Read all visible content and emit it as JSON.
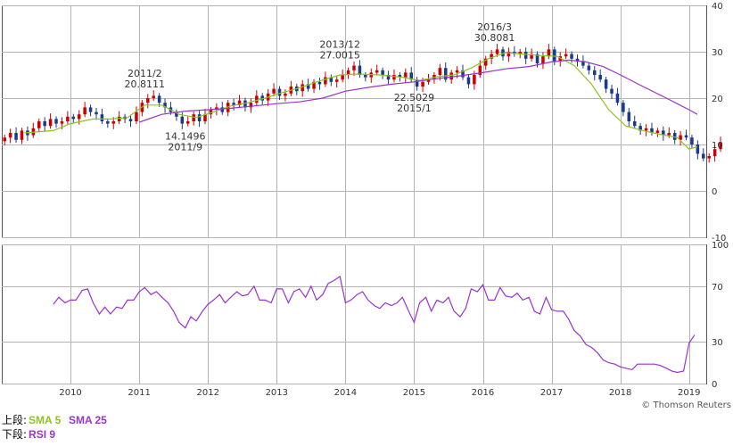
{
  "chart_data": {
    "type": "candlestick",
    "upper_panel": {
      "yticks": [
        "40",
        "30",
        "20",
        "10",
        "0",
        "-10"
      ],
      "ylim": [
        -10,
        40
      ],
      "annotations": [
        {
          "date": "2011/2",
          "value": "20.8111",
          "pos": "above",
          "x": 2011.08,
          "y": 20.81
        },
        {
          "date": "2011/9",
          "value": "14.1496",
          "pos": "below",
          "x": 2011.67,
          "y": 14.15
        },
        {
          "date": "2013/12",
          "value": "27.0015",
          "pos": "above",
          "x": 2013.92,
          "y": 27.0
        },
        {
          "date": "2015/1",
          "value": "22.5029",
          "pos": "below",
          "x": 2015.0,
          "y": 22.5
        },
        {
          "date": "2016/3",
          "value": "30.8081",
          "pos": "above",
          "x": 2016.17,
          "y": 30.81
        }
      ],
      "candles": {
        "start": 2009.0,
        "step": 0.0833333,
        "closes": [
          11.5,
          12.5,
          11.0,
          13.0,
          12.0,
          13.5,
          15.0,
          14.0,
          15.5,
          14.5,
          15.0,
          16.0,
          15.5,
          16.5,
          18.0,
          17.0,
          16.5,
          15.0,
          14.5,
          15.0,
          16.0,
          15.5,
          15.0,
          17.0,
          19.0,
          20.0,
          20.5,
          19.0,
          18.0,
          17.0,
          16.0,
          14.5,
          15.0,
          16.5,
          15.0,
          16.5,
          17.5,
          18.0,
          17.0,
          19.0,
          18.5,
          19.5,
          18.0,
          19.0,
          20.5,
          19.5,
          21.0,
          22.0,
          20.5,
          21.0,
          22.5,
          21.5,
          23.0,
          22.0,
          23.5,
          23.0,
          24.5,
          23.5,
          24.0,
          25.0,
          26.0,
          27.0,
          25.0,
          24.5,
          25.5,
          26.0,
          25.0,
          24.0,
          25.0,
          24.5,
          25.5,
          24.0,
          22.5,
          23.5,
          24.0,
          25.0,
          26.5,
          24.0,
          25.5,
          26.0,
          24.5,
          23.0,
          25.0,
          27.0,
          28.5,
          29.5,
          30.5,
          29.0,
          30.0,
          29.5,
          30.0,
          28.5,
          29.5,
          27.5,
          29.0,
          30.5,
          28.0,
          29.0,
          29.5,
          28.5,
          28.0,
          27.0,
          26.0,
          25.0,
          24.0,
          22.0,
          21.0,
          19.0,
          17.0,
          15.0,
          14.0,
          13.0,
          13.5,
          12.5,
          13.0,
          12.0,
          12.5,
          11.0,
          12.0,
          11.5,
          10.0,
          8.0,
          7.0,
          7.5,
          9.0,
          10.5
        ]
      },
      "sma5": [
        [
          2009.33,
          12.5
        ],
        [
          2009.75,
          13.0
        ],
        [
          2010.0,
          14.5
        ],
        [
          2010.33,
          15.5
        ],
        [
          2010.58,
          15.5
        ],
        [
          2010.83,
          15.8
        ],
        [
          2011.08,
          18.5
        ],
        [
          2011.33,
          18.5
        ],
        [
          2011.58,
          16.5
        ],
        [
          2011.83,
          15.8
        ],
        [
          2012.08,
          17.0
        ],
        [
          2012.33,
          18.3
        ],
        [
          2012.58,
          19.0
        ],
        [
          2012.83,
          20.0
        ],
        [
          2013.08,
          21.2
        ],
        [
          2013.33,
          22.2
        ],
        [
          2013.58,
          23.5
        ],
        [
          2013.92,
          25.0
        ],
        [
          2014.17,
          25.2
        ],
        [
          2014.5,
          25.0
        ],
        [
          2014.83,
          24.5
        ],
        [
          2015.08,
          23.8
        ],
        [
          2015.33,
          24.6
        ],
        [
          2015.58,
          25.0
        ],
        [
          2015.83,
          26.5
        ],
        [
          2016.08,
          28.5
        ],
        [
          2016.33,
          29.8
        ],
        [
          2016.58,
          29.5
        ],
        [
          2016.83,
          29.2
        ],
        [
          2017.08,
          29.0
        ],
        [
          2017.33,
          27.0
        ],
        [
          2017.58,
          23.0
        ],
        [
          2017.83,
          17.5
        ],
        [
          2018.08,
          14.0
        ],
        [
          2018.33,
          13.0
        ],
        [
          2018.58,
          12.2
        ],
        [
          2018.83,
          11.5
        ],
        [
          2019.0,
          9.0
        ],
        [
          2019.12,
          9.5
        ]
      ],
      "sma25": [
        [
          2011.0,
          14.8
        ],
        [
          2011.33,
          16.5
        ],
        [
          2011.67,
          17.2
        ],
        [
          2012.0,
          17.5
        ],
        [
          2012.33,
          17.8
        ],
        [
          2012.67,
          18.3
        ],
        [
          2013.0,
          18.8
        ],
        [
          2013.33,
          19.2
        ],
        [
          2013.67,
          20.0
        ],
        [
          2014.0,
          21.5
        ],
        [
          2014.33,
          22.3
        ],
        [
          2014.67,
          23.0
        ],
        [
          2015.0,
          23.5
        ],
        [
          2015.33,
          24.2
        ],
        [
          2015.67,
          24.8
        ],
        [
          2016.0,
          25.5
        ],
        [
          2016.33,
          26.3
        ],
        [
          2016.67,
          26.8
        ],
        [
          2017.0,
          27.8
        ],
        [
          2017.25,
          28.2
        ],
        [
          2017.5,
          27.8
        ],
        [
          2017.75,
          26.8
        ],
        [
          2018.0,
          25.0
        ],
        [
          2018.33,
          22.5
        ],
        [
          2018.67,
          20.0
        ],
        [
          2019.0,
          17.5
        ],
        [
          2019.12,
          16.5
        ]
      ]
    },
    "lower_panel": {
      "yticks": [
        "100",
        "70",
        "30",
        "0"
      ],
      "ylim": [
        0,
        100
      ],
      "rsi": [
        [
          2009.75,
          57
        ],
        [
          2009.83,
          62
        ],
        [
          2009.92,
          58
        ],
        [
          2010.0,
          60
        ],
        [
          2010.08,
          60
        ],
        [
          2010.17,
          67
        ],
        [
          2010.25,
          68
        ],
        [
          2010.33,
          58
        ],
        [
          2010.42,
          50
        ],
        [
          2010.5,
          55
        ],
        [
          2010.58,
          50
        ],
        [
          2010.67,
          55
        ],
        [
          2010.75,
          54
        ],
        [
          2010.83,
          60
        ],
        [
          2010.92,
          60
        ],
        [
          2011.0,
          66
        ],
        [
          2011.08,
          69
        ],
        [
          2011.17,
          64
        ],
        [
          2011.25,
          66
        ],
        [
          2011.33,
          62
        ],
        [
          2011.42,
          58
        ],
        [
          2011.5,
          52
        ],
        [
          2011.58,
          44
        ],
        [
          2011.67,
          40
        ],
        [
          2011.75,
          48
        ],
        [
          2011.83,
          45
        ],
        [
          2011.92,
          52
        ],
        [
          2012.0,
          57
        ],
        [
          2012.08,
          60
        ],
        [
          2012.17,
          64
        ],
        [
          2012.25,
          58
        ],
        [
          2012.33,
          62
        ],
        [
          2012.42,
          66
        ],
        [
          2012.5,
          63
        ],
        [
          2012.58,
          64
        ],
        [
          2012.67,
          70
        ],
        [
          2012.75,
          60
        ],
        [
          2012.83,
          60
        ],
        [
          2012.92,
          58
        ],
        [
          2013.0,
          68
        ],
        [
          2013.08,
          68
        ],
        [
          2013.17,
          58
        ],
        [
          2013.25,
          66
        ],
        [
          2013.33,
          68
        ],
        [
          2013.42,
          62
        ],
        [
          2013.5,
          70
        ],
        [
          2013.58,
          60
        ],
        [
          2013.67,
          64
        ],
        [
          2013.75,
          72
        ],
        [
          2013.83,
          74
        ],
        [
          2013.92,
          77
        ],
        [
          2014.0,
          58
        ],
        [
          2014.08,
          60
        ],
        [
          2014.17,
          64
        ],
        [
          2014.25,
          66
        ],
        [
          2014.33,
          60
        ],
        [
          2014.42,
          56
        ],
        [
          2014.5,
          54
        ],
        [
          2014.58,
          58
        ],
        [
          2014.67,
          56
        ],
        [
          2014.75,
          58
        ],
        [
          2014.83,
          62
        ],
        [
          2014.92,
          52
        ],
        [
          2015.0,
          44
        ],
        [
          2015.08,
          58
        ],
        [
          2015.17,
          62
        ],
        [
          2015.25,
          52
        ],
        [
          2015.33,
          60
        ],
        [
          2015.42,
          58
        ],
        [
          2015.5,
          62
        ],
        [
          2015.58,
          52
        ],
        [
          2015.67,
          48
        ],
        [
          2015.75,
          54
        ],
        [
          2015.83,
          68
        ],
        [
          2015.92,
          66
        ],
        [
          2016.0,
          71
        ],
        [
          2016.08,
          60
        ],
        [
          2016.17,
          60
        ],
        [
          2016.25,
          69
        ],
        [
          2016.33,
          63
        ],
        [
          2016.42,
          62
        ],
        [
          2016.5,
          65
        ],
        [
          2016.58,
          60
        ],
        [
          2016.67,
          62
        ],
        [
          2016.75,
          52
        ],
        [
          2016.83,
          50
        ],
        [
          2016.92,
          62
        ],
        [
          2017.0,
          53
        ],
        [
          2017.08,
          52
        ],
        [
          2017.17,
          52
        ],
        [
          2017.25,
          46
        ],
        [
          2017.33,
          38
        ],
        [
          2017.42,
          34
        ],
        [
          2017.5,
          28
        ],
        [
          2017.58,
          26
        ],
        [
          2017.67,
          22
        ],
        [
          2017.75,
          17
        ],
        [
          2017.83,
          15
        ],
        [
          2017.92,
          14
        ],
        [
          2018.0,
          12
        ],
        [
          2018.08,
          11
        ],
        [
          2018.17,
          10
        ],
        [
          2018.25,
          14
        ],
        [
          2018.33,
          14
        ],
        [
          2018.42,
          14
        ],
        [
          2018.5,
          14
        ],
        [
          2018.58,
          13
        ],
        [
          2018.67,
          11
        ],
        [
          2018.75,
          9
        ],
        [
          2018.83,
          8
        ],
        [
          2018.92,
          9
        ],
        [
          2019.0,
          29
        ],
        [
          2019.08,
          35
        ]
      ]
    },
    "x_ticks": [
      "2010",
      "2011",
      "2012",
      "2013",
      "2014",
      "2015",
      "2016",
      "2017",
      "2018",
      "2019"
    ],
    "colors": {
      "up": "#cc0000",
      "down": "#1a3a8c",
      "sma5": "#8fc31f",
      "sma25": "#9933cc",
      "rsi": "#9933cc",
      "grid": "#b4b4b4",
      "axis": "#555555"
    }
  },
  "legend": {
    "top_prefix": "上段:",
    "sma5_label": "SMA 5",
    "sma25_label": "SMA 25",
    "bottom_prefix": "下段:",
    "rsi_label": "RSI 9"
  },
  "credit": "© Thomson Reuters"
}
